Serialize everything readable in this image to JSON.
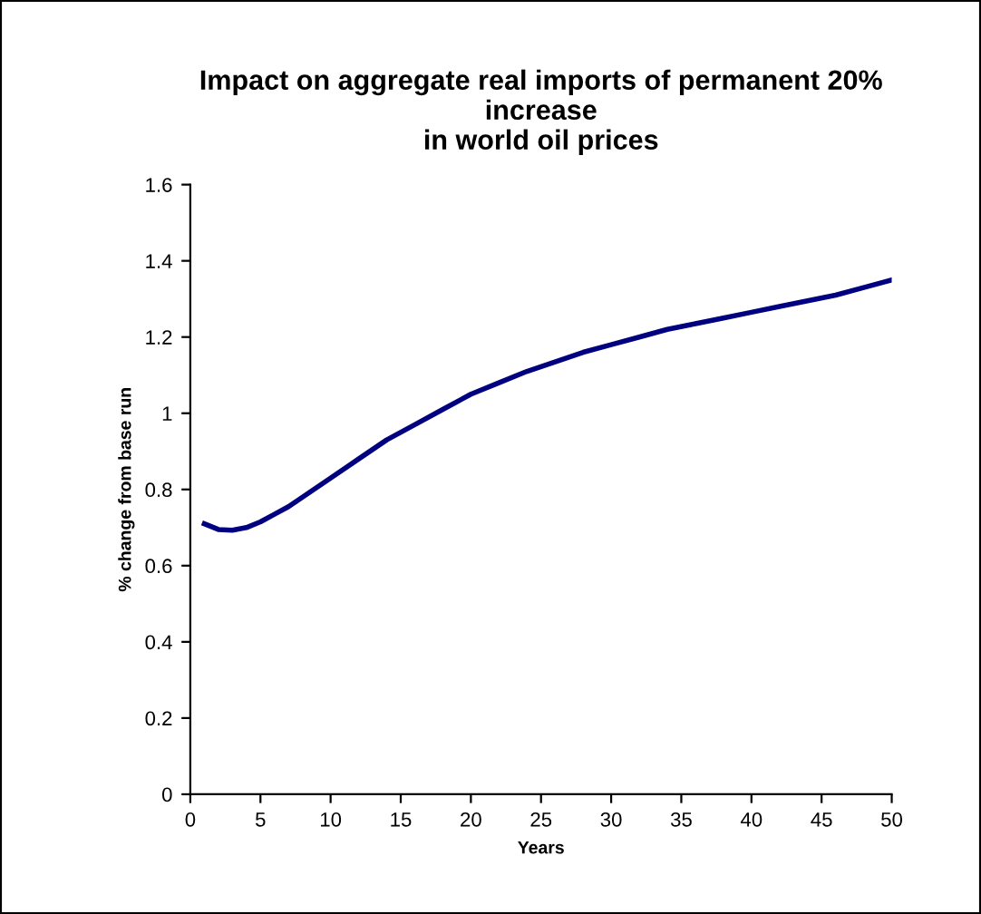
{
  "chart_data": {
    "type": "line",
    "title": "Impact on aggregate real imports of permanent 20%\nincrease\nin world oil prices",
    "xlabel": "Years",
    "ylabel": "% change from base run",
    "series": [
      {
        "color": "#000080",
        "x": [
          1,
          2,
          3,
          4,
          5,
          6,
          7,
          8,
          10,
          12,
          14,
          16,
          18,
          20,
          22,
          24,
          26,
          28,
          30,
          32,
          34,
          36,
          38,
          40,
          42,
          44,
          46,
          48,
          50
        ],
        "values": [
          0.71,
          0.695,
          0.693,
          0.7,
          0.715,
          0.735,
          0.755,
          0.78,
          0.83,
          0.88,
          0.93,
          0.97,
          1.01,
          1.05,
          1.08,
          1.11,
          1.135,
          1.16,
          1.18,
          1.2,
          1.22,
          1.235,
          1.25,
          1.265,
          1.28,
          1.295,
          1.31,
          1.33,
          1.35
        ]
      }
    ],
    "xlim": [
      0,
      50
    ],
    "xticks": [
      0,
      5,
      10,
      15,
      20,
      25,
      30,
      35,
      40,
      45,
      50
    ],
    "ylim": [
      0,
      1.6
    ],
    "yticks": [
      0,
      0.2,
      0.4,
      0.6,
      0.8,
      1,
      1.2,
      1.4,
      1.6
    ],
    "grid": false,
    "legend": false,
    "marker": "none",
    "line_style": "solid"
  }
}
